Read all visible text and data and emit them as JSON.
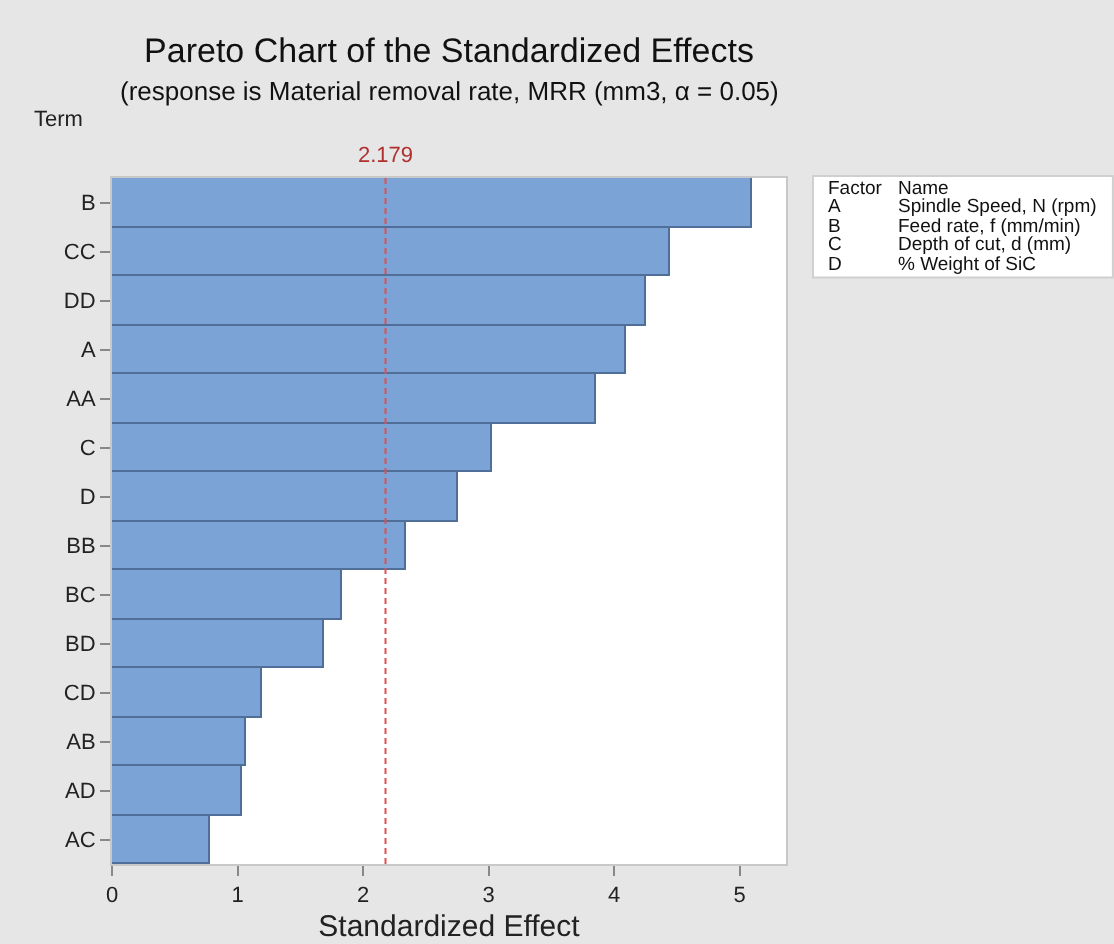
{
  "chart_data": {
    "type": "bar",
    "orientation": "horizontal",
    "title": "Pareto Chart of the Standardized Effects",
    "subtitle": "(response is Material removal rate, MRR (mm3, α = 0.05)",
    "xlabel": "Standardized Effect",
    "ylabel": "Term",
    "categories": [
      "B",
      "CC",
      "DD",
      "A",
      "AA",
      "C",
      "D",
      "BB",
      "BC",
      "BD",
      "CD",
      "AB",
      "AD",
      "AC"
    ],
    "values": [
      5.1,
      4.45,
      4.25,
      4.09,
      3.86,
      3.02,
      2.75,
      2.34,
      1.84,
      1.69,
      1.2,
      1.07,
      1.03,
      0.78
    ],
    "color": "#7ba3d6",
    "xlim": [
      0,
      5.37
    ],
    "xticks": [
      0,
      1,
      2,
      3,
      4,
      5
    ],
    "ref_lines": [
      {
        "axis": "x",
        "value": 2.179,
        "label": "2.179",
        "color": "#e05050",
        "line_style": "dashed"
      }
    ],
    "annotations": [
      "Factor",
      "Name",
      "A",
      "Spindle Speed, N (rpm)",
      "B",
      "Feed rate, f (mm/min)",
      "C",
      "Depth of cut, d (mm)",
      "D",
      "% Weight of SiC"
    ],
    "grid": false
  }
}
